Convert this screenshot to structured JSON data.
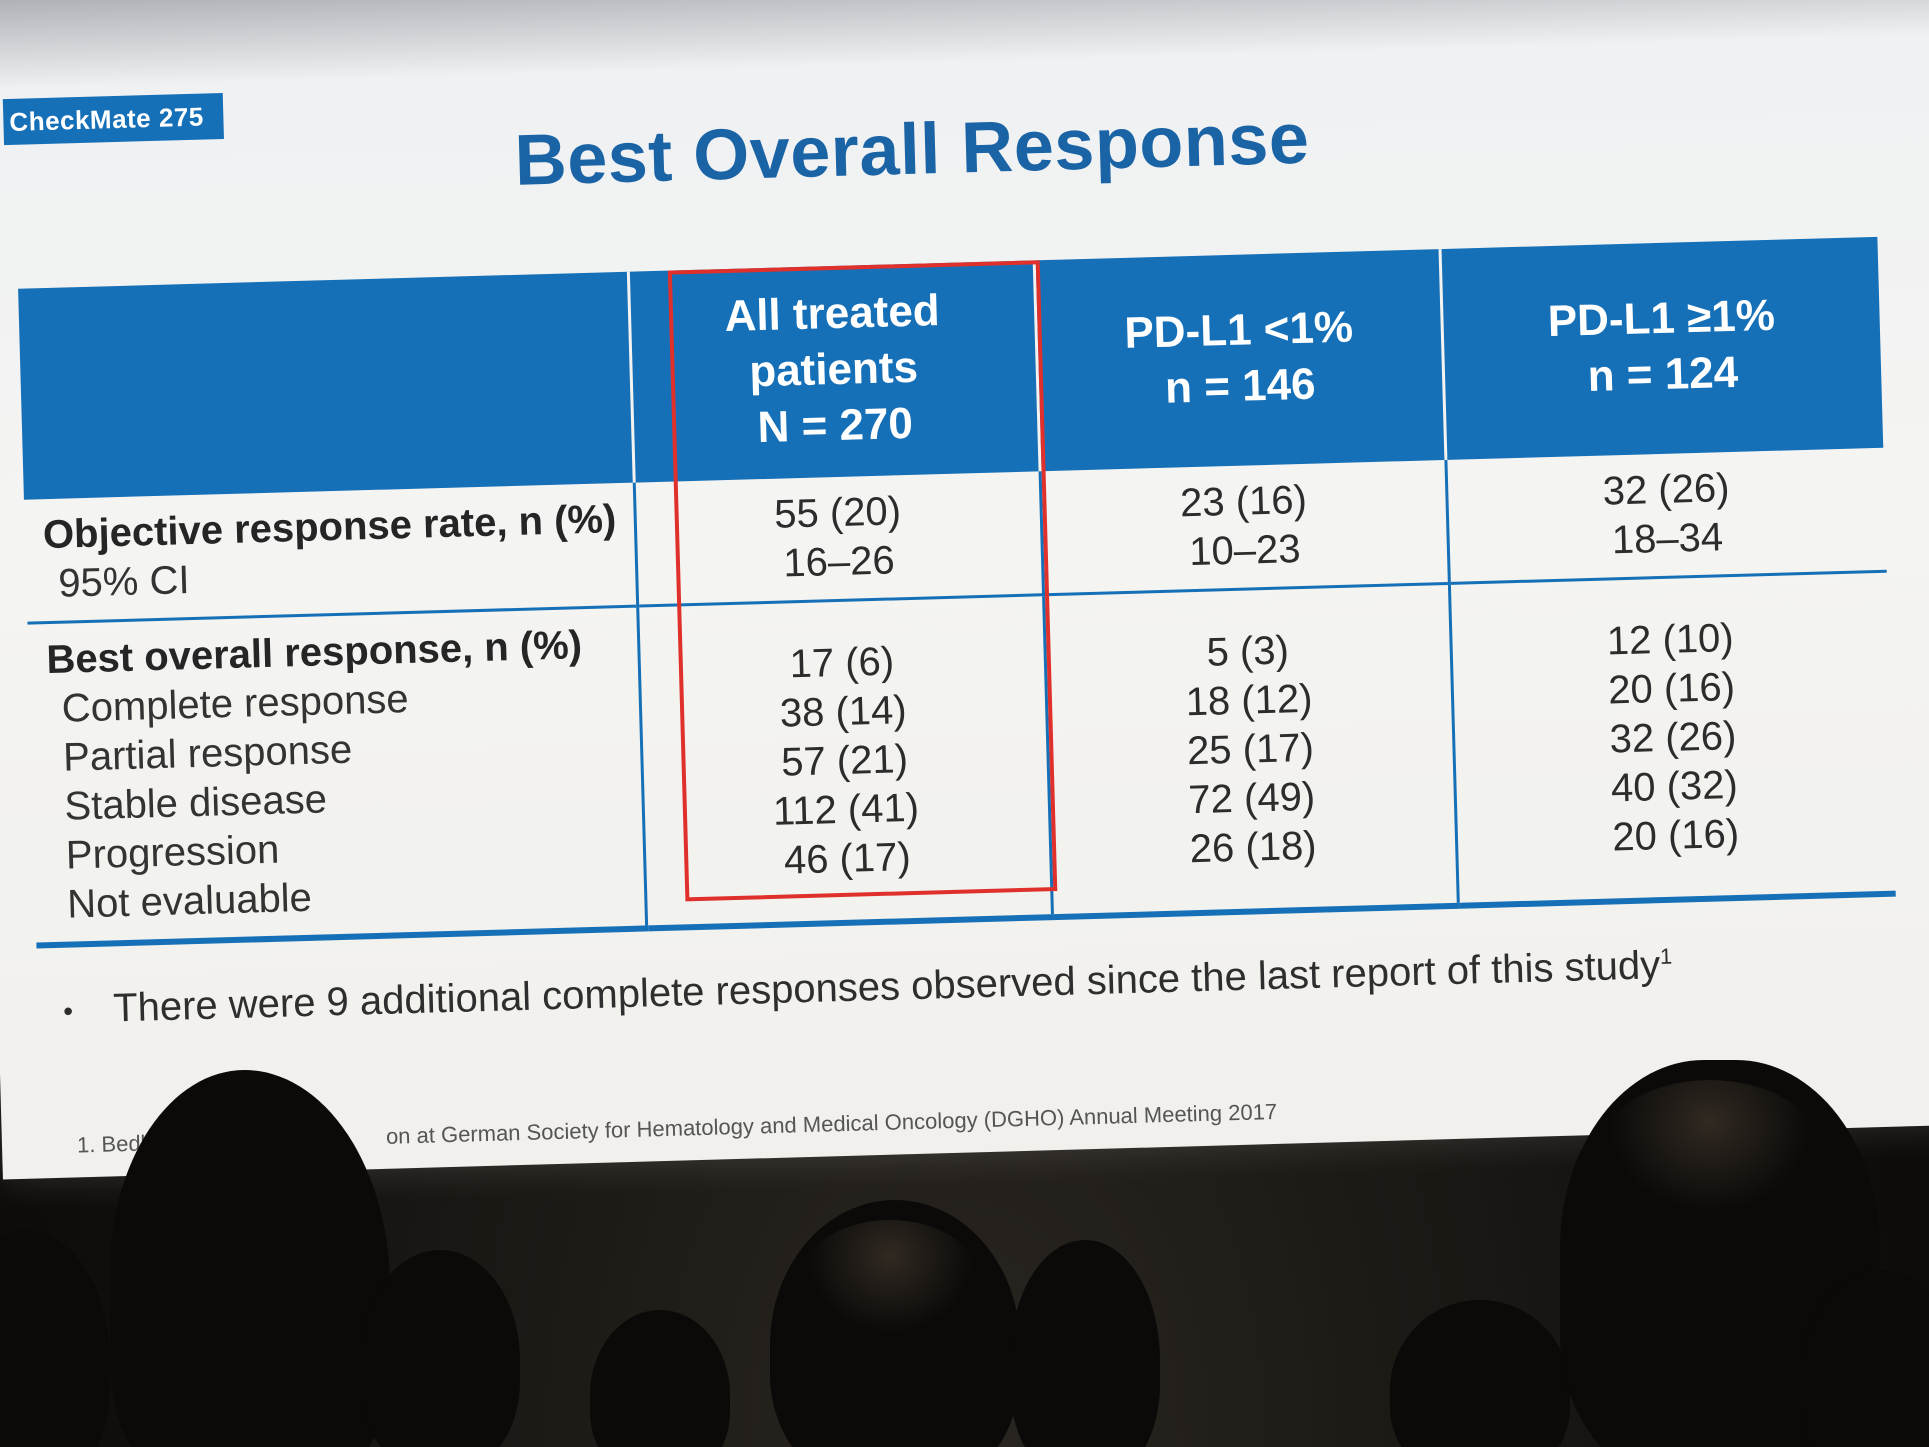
{
  "slide": {
    "tag": "CheckMate 275",
    "title": "Best Overall Response",
    "table": {
      "columns": [
        {
          "lines": [
            "All treated",
            "patients",
            "N = 270"
          ]
        },
        {
          "lines": [
            "PD-L1 <1%",
            "n = 146"
          ]
        },
        {
          "lines": [
            "PD-L1 ≥1%",
            "n = 124"
          ]
        }
      ],
      "rows": [
        {
          "head": "Objective response rate, n (%)",
          "subs": [
            "95% CI"
          ],
          "cells": [
            [
              "55 (20)",
              "16–26"
            ],
            [
              "23 (16)",
              "10–23"
            ],
            [
              "32 (26)",
              "18–34"
            ]
          ]
        },
        {
          "head": "Best overall response, n (%)",
          "subs": [
            "Complete response",
            "Partial response",
            "Stable disease",
            "Progression",
            "Not evaluable"
          ],
          "cells": [
            [
              "17 (6)",
              "38 (14)",
              "57 (21)",
              "112 (41)",
              "46 (17)"
            ],
            [
              "5 (3)",
              "18 (12)",
              "25 (17)",
              "72 (49)",
              "26 (18)"
            ],
            [
              "12 (10)",
              "20 (16)",
              "32 (26)",
              "40 (32)",
              "20 (16)"
            ]
          ]
        }
      ]
    },
    "bullet": {
      "text": "There were 9 additional complete responses observed since the last report of this study",
      "superscript": "1"
    },
    "footnote": "1. Bedke",
    "footnote_tail": "on at German Society for Hematology and Medical Oncology (DGHO) Annual Meeting 2017"
  },
  "colors": {
    "accent_blue": "#1670b8",
    "highlight_red": "#e0302c",
    "title_blue": "#1a63a5"
  }
}
